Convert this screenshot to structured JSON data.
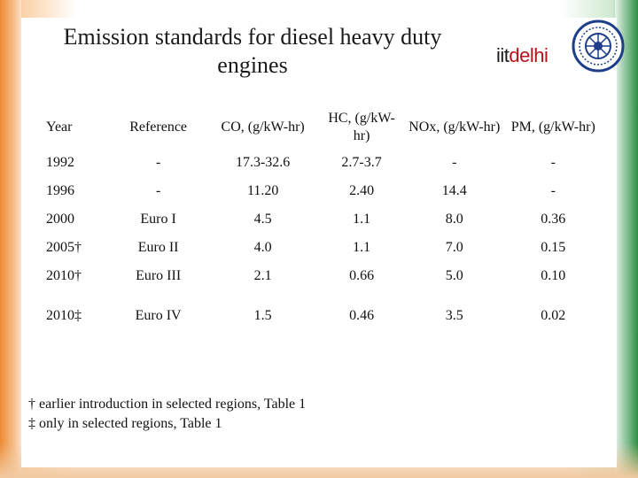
{
  "slide": {
    "title_line1": "Emission standards for diesel heavy duty",
    "title_line2": "engines"
  },
  "logo": {
    "iit": "iit",
    "delhi": "delhi"
  },
  "table": {
    "headers": [
      "Year",
      "Reference",
      "CO, (g/kW-hr)",
      "HC, (g/kW-hr)",
      "NOx, (g/kW-hr)",
      "PM, (g/kW-hr)"
    ],
    "rows": [
      [
        "1992",
        "-",
        "17.3-32.6",
        "2.7-3.7",
        "-",
        "-"
      ],
      [
        "1996",
        "-",
        "11.20",
        "2.40",
        "14.4",
        "-"
      ],
      [
        "2000",
        "Euro I",
        "4.5",
        "1.1",
        "8.0",
        "0.36"
      ],
      [
        "2005†",
        "Euro II",
        "4.0",
        "1.1",
        "7.0",
        "0.15"
      ],
      [
        "2010†",
        "Euro III",
        "2.1",
        "0.66",
        "5.0",
        "0.10"
      ],
      [
        "2010‡",
        "Euro IV",
        "1.5",
        "0.46",
        "3.5",
        "0.02"
      ]
    ]
  },
  "footnotes": {
    "dagger": "† earlier introduction in selected regions, Table 1",
    "double_dagger": "‡ only in selected regions, Table 1"
  },
  "colors": {
    "saffron": "#ee8a33",
    "green": "#2b8f43",
    "logo_red": "#b5121b"
  }
}
